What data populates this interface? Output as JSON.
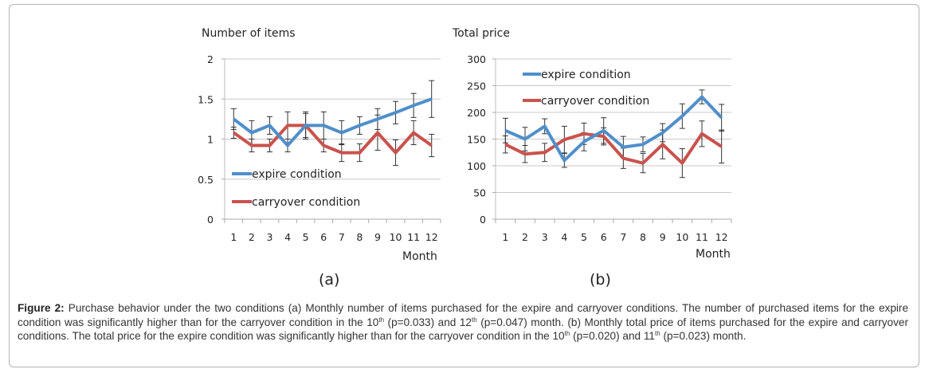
{
  "chart_data": [
    {
      "type": "line",
      "panel_label": "(a)",
      "title": "",
      "ylabel": "Number of items",
      "xlabel": "Month",
      "ylim": [
        0,
        2
      ],
      "yticks": [
        0,
        0.5,
        1,
        1.5,
        2
      ],
      "ytick_labels": [
        "0",
        "0.5",
        "1",
        "1.5",
        "2"
      ],
      "grid": true,
      "legend_position": "bottom-left",
      "categories": [
        "1",
        "2",
        "3",
        "4",
        "5",
        "6",
        "7",
        "8",
        "9",
        "10",
        "11",
        "12"
      ],
      "series": [
        {
          "name": "expire condition",
          "color": "#4f8fcb",
          "values": [
            1.25,
            1.08,
            1.17,
            0.92,
            1.17,
            1.17,
            1.08,
            1.17,
            1.25,
            1.33,
            1.42,
            1.5
          ],
          "errors": [
            0.13,
            0.15,
            0.11,
            0.08,
            0.17,
            0.17,
            0.15,
            0.11,
            0.13,
            0.14,
            0.15,
            0.23
          ]
        },
        {
          "name": "carryover condition",
          "color": "#c9524d",
          "values": [
            1.08,
            0.92,
            0.92,
            1.17,
            1.17,
            0.92,
            0.83,
            0.83,
            1.08,
            0.83,
            1.08,
            0.92
          ],
          "errors": [
            0.07,
            0.08,
            0.08,
            0.17,
            0.15,
            0.08,
            0.11,
            0.11,
            0.22,
            0.16,
            0.15,
            0.14
          ]
        }
      ]
    },
    {
      "type": "line",
      "panel_label": "(b)",
      "title": "",
      "ylabel": "Total price",
      "xlabel": "Month",
      "ylim": [
        0,
        300
      ],
      "yticks": [
        0,
        50,
        100,
        150,
        200,
        250,
        300
      ],
      "ytick_labels": [
        "0",
        "50",
        "100",
        "150",
        "200",
        "250",
        "300"
      ],
      "grid": true,
      "legend_position": "top-left",
      "categories": [
        "1",
        "2",
        "3",
        "4",
        "5",
        "6",
        "7",
        "8",
        "9",
        "10",
        "11",
        "12"
      ],
      "series": [
        {
          "name": "expire condition",
          "color": "#4f8fcb",
          "values": [
            166,
            150,
            174,
            110,
            145,
            166,
            135,
            140,
            162,
            193,
            229,
            190
          ],
          "errors": [
            23,
            22,
            14,
            13,
            17,
            24,
            20,
            14,
            17,
            23,
            13,
            25
          ]
        },
        {
          "name": "carryover condition",
          "color": "#c9524d",
          "values": [
            140,
            122,
            125,
            149,
            160,
            155,
            114,
            105,
            140,
            105,
            160,
            136
          ],
          "errors": [
            16,
            16,
            17,
            25,
            20,
            16,
            19,
            18,
            27,
            27,
            24,
            31
          ]
        }
      ]
    }
  ],
  "caption": {
    "label": "Figure 2:",
    "p1": " Purchase behavior under the two conditions (a) Monthly number of items purchased for the expire and carryover conditions. The number of purchased items for the expire condition was significantly higher than for the carryover condition in the 10",
    "sup1": "th",
    "p2": " (p=0.033) and 12",
    "sup2": "th",
    "p3": " (p=0.047) month. (b) Monthly total price of items purchased for the expire and carryover conditions. The total price for the expire condition was significantly higher than for the carryover condition in the 10",
    "sup3": "th",
    "p4": " (p=0.020) and 11",
    "sup4": "th",
    "p5": " (p=0.023) month."
  }
}
